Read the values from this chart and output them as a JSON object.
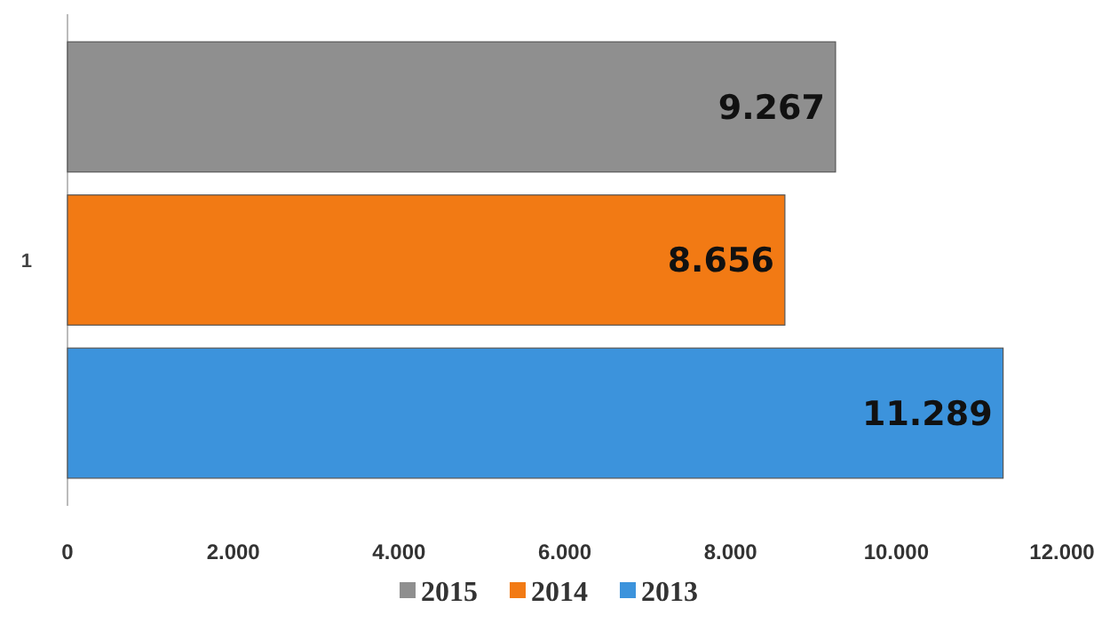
{
  "chart_data": {
    "type": "bar",
    "orientation": "horizontal",
    "categories": [
      "1"
    ],
    "series": [
      {
        "name": "2015",
        "color": "#8f8f8f",
        "values": [
          9267
        ],
        "value_labels": [
          "9.267"
        ]
      },
      {
        "name": "2014",
        "color": "#f27a14",
        "values": [
          8656
        ],
        "value_labels": [
          "8.656"
        ]
      },
      {
        "name": "2013",
        "color": "#3c93dc",
        "values": [
          11289
        ],
        "value_labels": [
          "11.289"
        ]
      }
    ],
    "xlim": [
      0,
      12000
    ],
    "xticks": [
      {
        "value": 0,
        "label": "0"
      },
      {
        "value": 2000,
        "label": "2.000"
      },
      {
        "value": 4000,
        "label": "4.000"
      },
      {
        "value": 6000,
        "label": "6.000"
      },
      {
        "value": 8000,
        "label": "8.000"
      },
      {
        "value": 10000,
        "label": "10.000"
      },
      {
        "value": 12000,
        "label": "12.000"
      }
    ],
    "legend": "bottom"
  }
}
